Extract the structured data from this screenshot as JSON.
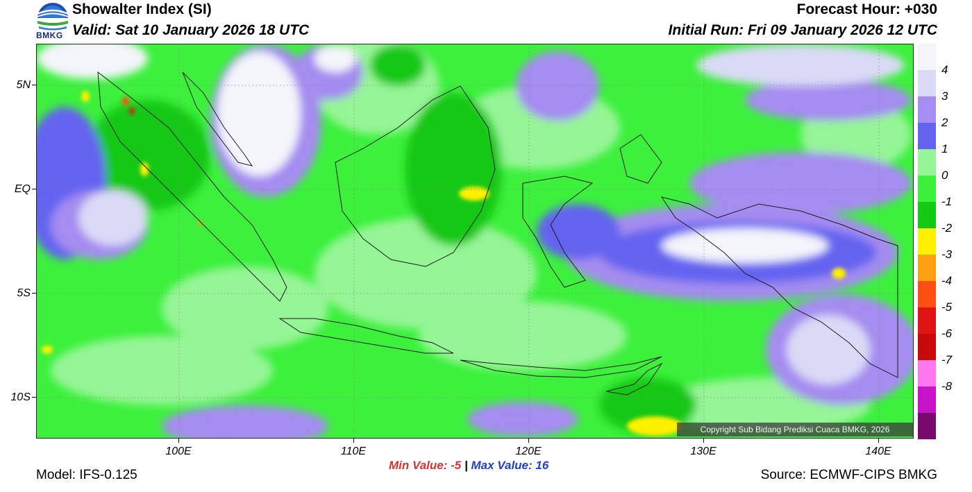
{
  "header": {
    "title": "Showalter Index (SI)",
    "valid": "Valid: Sat 10 January 2026 18 UTC",
    "forecast_hour": "Forecast Hour: +030",
    "initial_run": "Initial Run: Fri 09 January 2026 12 UTC"
  },
  "logo": {
    "text": "BMKG"
  },
  "map": {
    "lat_labels": [
      "5N",
      "EQ",
      "5S",
      "10S"
    ],
    "lon_labels": [
      "100E",
      "110E",
      "120E",
      "130E",
      "140E"
    ],
    "copyright": "Copyright Sub Bidang Prediksi Cuaca BMKG, 2026"
  },
  "legend": {
    "levels": [
      {
        "label": "",
        "color": "#f4f4fb"
      },
      {
        "label": "4",
        "color": "#dadaf6"
      },
      {
        "label": "3",
        "color": "#a48cf0"
      },
      {
        "label": "2",
        "color": "#6464f0"
      },
      {
        "label": "1",
        "color": "#96f596"
      },
      {
        "label": "0",
        "color": "#3cf03c"
      },
      {
        "label": "-1",
        "color": "#14c814"
      },
      {
        "label": "-2",
        "color": "#fff000"
      },
      {
        "label": "-3",
        "color": "#ffa014"
      },
      {
        "label": "-4",
        "color": "#ff5014"
      },
      {
        "label": "-5",
        "color": "#e01414"
      },
      {
        "label": "-6",
        "color": "#c80a0a"
      },
      {
        "label": "-7",
        "color": "#ff78f0"
      },
      {
        "label": "-8",
        "color": "#c814c8"
      },
      {
        "label": "",
        "color": "#780a6e"
      }
    ]
  },
  "stats": {
    "min_label": "Min Value:",
    "min_value": "-5",
    "separator": "|",
    "max_label": "Max Value:",
    "max_value": "16"
  },
  "footer": {
    "model": "Model: IFS-0.125",
    "source": "Source: ECMWF-CIPS BMKG"
  }
}
